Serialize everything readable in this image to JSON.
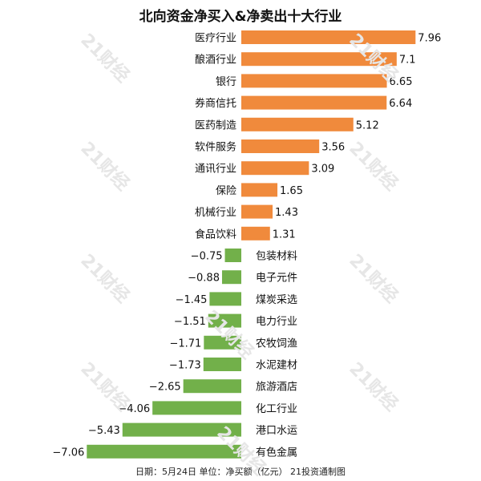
{
  "chart_data": {
    "type": "bar",
    "title": "北向资金净买入&净卖出十大行业",
    "categories": [
      "医疗行业",
      "酿酒行业",
      "银行",
      "券商信托",
      "医药制造",
      "软件服务",
      "通讯行业",
      "保险",
      "机械行业",
      "食品饮料",
      "包装材料",
      "电子元件",
      "煤炭采选",
      "电力行业",
      "农牧饲渔",
      "水泥建材",
      "旅游酒店",
      "化工行业",
      "港口水运",
      "有色金属"
    ],
    "values": [
      7.96,
      7.1,
      6.65,
      6.64,
      5.12,
      3.56,
      3.09,
      1.65,
      1.43,
      1.31,
      -0.75,
      -0.88,
      -1.45,
      -1.51,
      -1.71,
      -1.73,
      -2.65,
      -4.06,
      -5.43,
      -7.06
    ],
    "value_labels": [
      "7.96",
      "7.1",
      "6.65",
      "6.64",
      "5.12",
      "3.56",
      "3.09",
      "1.65",
      "1.43",
      "1.31",
      "−0.75",
      "−0.88",
      "−1.45",
      "−1.51",
      "−1.71",
      "−1.73",
      "−2.65",
      "−4.06",
      "−5.43",
      "−7.06"
    ],
    "positive_color": "#f08a3c",
    "negative_color": "#72b04a",
    "orientation": "horizontal"
  },
  "footer": "日期：5月24日 单位：净买额（亿元） 21投资通制图",
  "watermark_text": "21财经"
}
